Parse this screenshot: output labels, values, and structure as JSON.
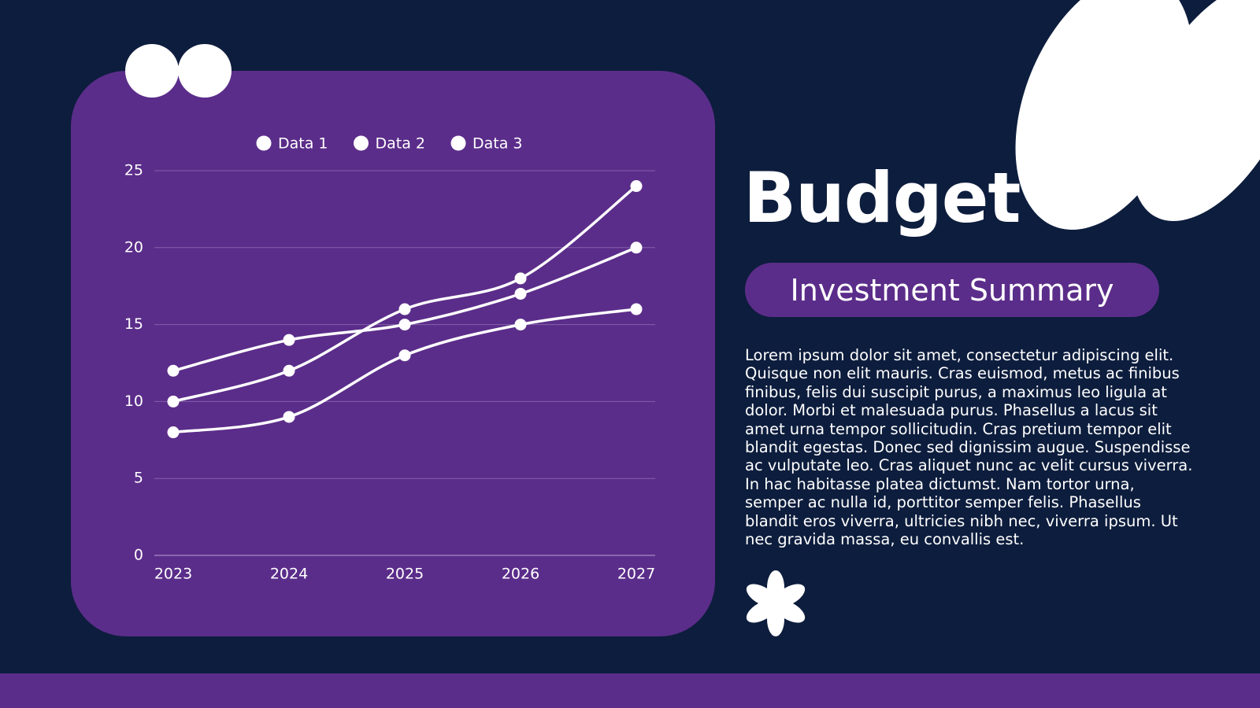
{
  "title": "Budget",
  "subtitle": "Investment Summary",
  "body": "Lorem ipsum dolor sit amet, consectetur adipiscing elit. Quisque non elit mauris. Cras euismod, metus ac finibus finibus, felis dui suscipit purus, a maximus leo ligula at dolor. Morbi et malesuada purus. Phasellus a lacus sit amet urna tempor sollicitudin. Cras pretium tempor elit blandit egestas. Donec sed dignissim augue. Suspendisse ac vulputate leo. Cras aliquet nunc ac velit cursus viverra. In hac habitasse platea dictumst. Nam tortor urna, semper ac nulla id, porttitor semper felis. Phasellus blandit eros viverra, ultricies nibh nec, viverra ipsum. Ut nec gravida massa, eu convallis est.",
  "chart_data": {
    "type": "line",
    "categories": [
      "2023",
      "2024",
      "2025",
      "2026",
      "2027"
    ],
    "series": [
      {
        "name": "Data 1",
        "color": "#ffffff",
        "values": [
          12,
          14,
          15,
          17,
          20
        ]
      },
      {
        "name": "Data 2",
        "color": "#ffffff",
        "values": [
          10,
          12,
          16,
          18,
          24
        ]
      },
      {
        "name": "Data 3",
        "color": "#ffffff",
        "values": [
          8,
          9,
          13,
          15,
          16
        ]
      }
    ],
    "ylim": [
      0,
      25
    ],
    "yticks": [
      0,
      5,
      10,
      15,
      20,
      25
    ],
    "grid": true,
    "legend": "top"
  }
}
